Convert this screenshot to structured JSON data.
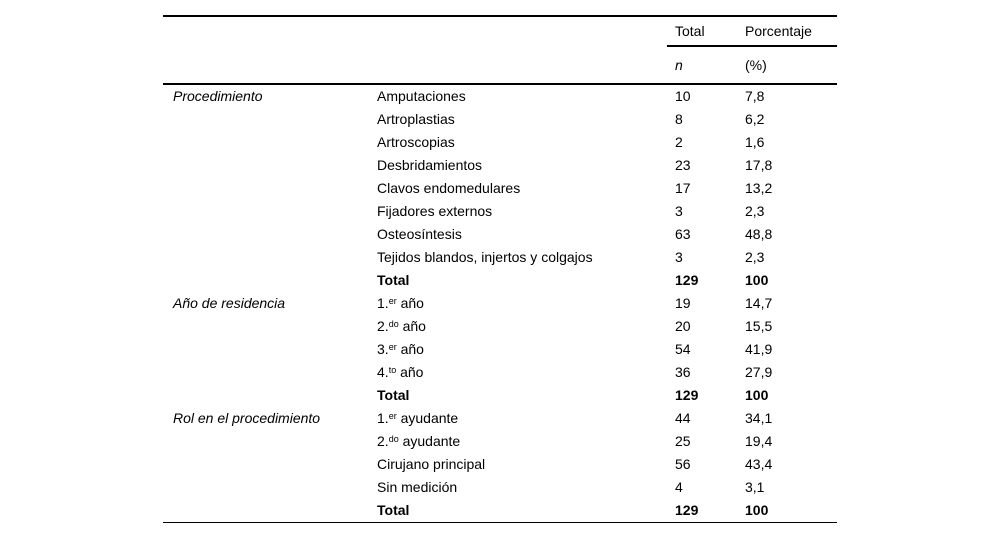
{
  "table": {
    "header": {
      "total": "Total",
      "porcentaje": "Porcentaje",
      "n": "n",
      "pct_unit": "(%)"
    },
    "sections": [
      {
        "label": "Procedimiento",
        "rows": [
          {
            "item": "Amputaciones",
            "n": "10",
            "pct": "7,8"
          },
          {
            "item": "Artroplastias",
            "n": "8",
            "pct": "6,2"
          },
          {
            "item": "Artroscopias",
            "n": "2",
            "pct": "1,6"
          },
          {
            "item": "Desbridamientos",
            "n": "23",
            "pct": "17,8"
          },
          {
            "item": "Clavos endomedulares",
            "n": "17",
            "pct": "13,2"
          },
          {
            "item": "Fijadores externos",
            "n": "3",
            "pct": "2,3"
          },
          {
            "item": "Osteosíntesis",
            "n": "63",
            "pct": "48,8"
          },
          {
            "item": "Tejidos blandos, injertos y colgajos",
            "n": "3",
            "pct": "2,3"
          },
          {
            "item": "Total",
            "n": "129",
            "pct": "100"
          }
        ]
      },
      {
        "label": "Año de residencia",
        "rows": [
          {
            "item": "1.",
            "item_sup": "er",
            "item_rest": " año",
            "n": "19",
            "pct": "14,7"
          },
          {
            "item": "2.",
            "item_sup": "do",
            "item_rest": " año",
            "n": "20",
            "pct": "15,5"
          },
          {
            "item": "3.",
            "item_sup": "er",
            "item_rest": " año",
            "n": "54",
            "pct": "41,9"
          },
          {
            "item": "4.",
            "item_sup": "to",
            "item_rest": " año",
            "n": "36",
            "pct": "27,9"
          },
          {
            "item": "Total",
            "n": "129",
            "pct": "100"
          }
        ]
      },
      {
        "label": "Rol en el procedimiento",
        "rows": [
          {
            "item": "1.",
            "item_sup": "er",
            "item_rest": " ayudante",
            "n": "44",
            "pct": "34,1"
          },
          {
            "item": "2.",
            "item_sup": "do",
            "item_rest": " ayudante",
            "n": "25",
            "pct": "19,4"
          },
          {
            "item": "Cirujano principal",
            "n": "56",
            "pct": "43,4"
          },
          {
            "item": "Sin medición",
            "n": "4",
            "pct": "3,1"
          },
          {
            "item": "Total",
            "n": "129",
            "pct": "100"
          }
        ]
      }
    ]
  }
}
